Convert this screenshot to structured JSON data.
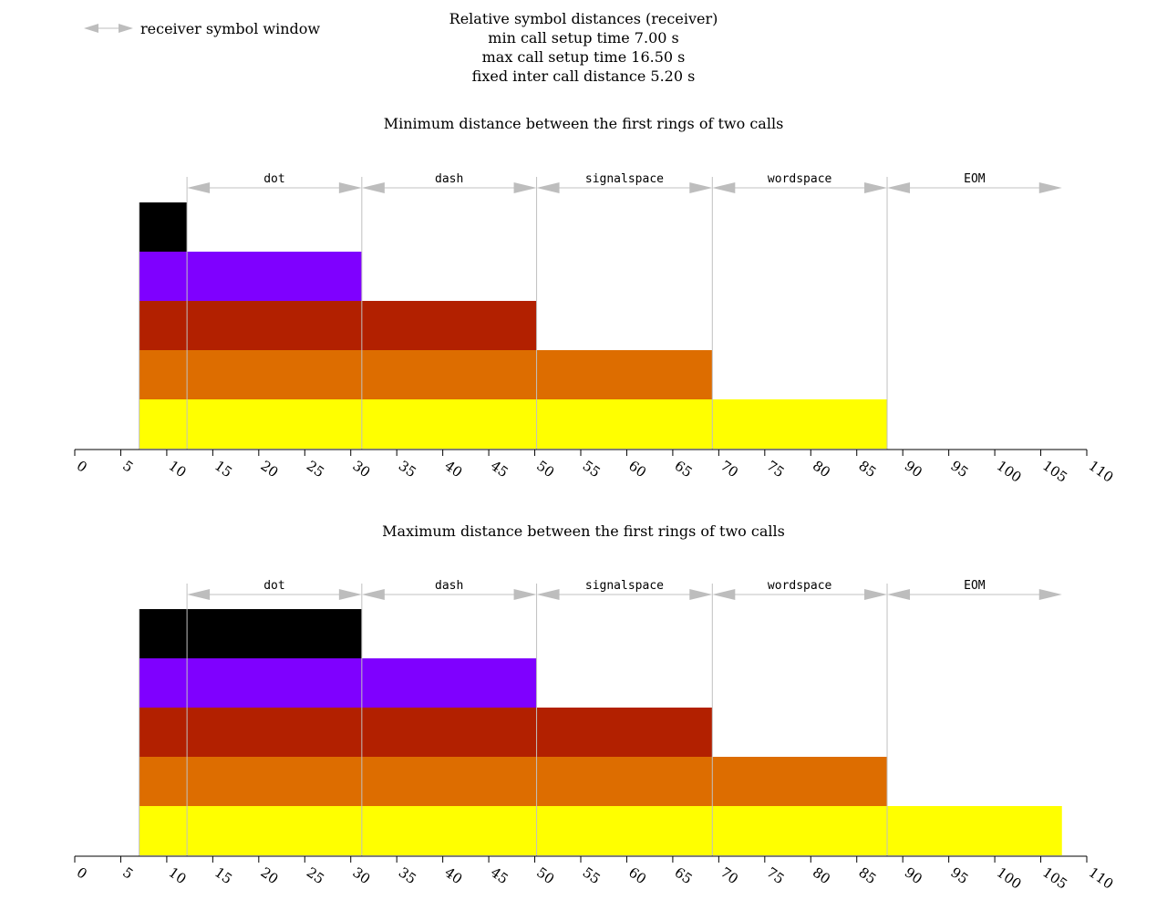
{
  "legend": {
    "label": "receiver symbol window",
    "icon": "double-arrow-icon"
  },
  "header": {
    "title": "Relative symbol distances (receiver)",
    "line2": "min call setup time 7.00 s",
    "line3": "max call setup time 16.50 s",
    "line4": "fixed inter call distance 5.20 s"
  },
  "colors": {
    "bars": [
      "#000000",
      "#7f00ff",
      "#b22000",
      "#dd6d00",
      "#ffff00"
    ],
    "guide": "#c0c0c0",
    "arrow": "#bdbdbd",
    "axis": "#000000"
  },
  "chart_data": [
    {
      "type": "bar",
      "orientation": "horizontal",
      "title": "Minimum distance between the first rings of two calls",
      "xlim": [
        0,
        110
      ],
      "xticks": [
        0,
        5,
        10,
        15,
        20,
        25,
        30,
        35,
        40,
        45,
        50,
        55,
        60,
        65,
        70,
        75,
        80,
        85,
        90,
        95,
        100,
        105,
        110
      ],
      "segment_boundaries": [
        12.2,
        31.2,
        50.2,
        69.3,
        88.3,
        107.3
      ],
      "segment_labels": [
        "dot",
        "dash",
        "signalspace",
        "wordspace",
        "EOM"
      ],
      "bars": [
        {
          "start": 7.0,
          "end": 12.2
        },
        {
          "start": 7.0,
          "end": 31.2
        },
        {
          "start": 7.0,
          "end": 50.2
        },
        {
          "start": 7.0,
          "end": 69.3
        },
        {
          "start": 7.0,
          "end": 88.3
        }
      ]
    },
    {
      "type": "bar",
      "orientation": "horizontal",
      "title": "Maximum distance between the first rings of two calls",
      "xlim": [
        0,
        110
      ],
      "xticks": [
        0,
        5,
        10,
        15,
        20,
        25,
        30,
        35,
        40,
        45,
        50,
        55,
        60,
        65,
        70,
        75,
        80,
        85,
        90,
        95,
        100,
        105,
        110
      ],
      "segment_boundaries": [
        12.2,
        31.2,
        50.2,
        69.3,
        88.3,
        107.3
      ],
      "segment_labels": [
        "dot",
        "dash",
        "signalspace",
        "wordspace",
        "EOM"
      ],
      "bars": [
        {
          "start": 7.0,
          "end": 31.2
        },
        {
          "start": 7.0,
          "end": 50.2
        },
        {
          "start": 7.0,
          "end": 69.3
        },
        {
          "start": 7.0,
          "end": 88.3
        },
        {
          "start": 7.0,
          "end": 107.3
        }
      ]
    }
  ]
}
